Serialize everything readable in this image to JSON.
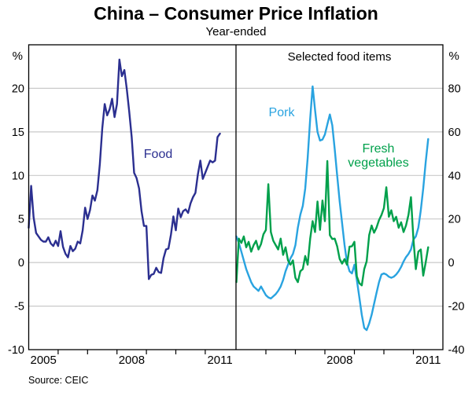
{
  "header": {
    "title": "China – Consumer Price Inflation",
    "subtitle": "Year-ended"
  },
  "footer": {
    "source": "Source: CEIC"
  },
  "colors": {
    "food": "#2B2F90",
    "pork": "#29A3E0",
    "fresh_vegetables": "#00A04B",
    "grid": "#C9C9C9",
    "frame": "#000000",
    "text": "#000000"
  },
  "chart_data": [
    {
      "type": "line",
      "panel": "left",
      "unit": "%",
      "x_monthly_start": "2005-01",
      "x_monthly_end": "2011-07",
      "x_axis_years": [
        2005,
        2012
      ],
      "x_tick_labels": [
        "2005",
        "2008",
        "2011"
      ],
      "ylim": [
        -10,
        25
      ],
      "yticks": [
        20,
        15,
        10,
        5,
        0,
        -5,
        -10
      ],
      "grid": true,
      "series": [
        {
          "name": "Food",
          "color_key": "food",
          "values": [
            4.0,
            8.8,
            5.2,
            3.4,
            3.0,
            2.6,
            2.4,
            2.4,
            2.9,
            2.2,
            1.9,
            2.5,
            1.9,
            3.6,
            1.8,
            1.0,
            0.6,
            1.9,
            1.3,
            1.6,
            2.4,
            2.2,
            3.7,
            6.3,
            5.0,
            6.0,
            7.7,
            7.1,
            8.3,
            11.3,
            15.4,
            18.2,
            16.9,
            17.6,
            18.8,
            16.7,
            18.2,
            23.3,
            21.4,
            22.1,
            19.9,
            17.3,
            14.4,
            10.3,
            9.7,
            8.5,
            5.9,
            4.2,
            4.2,
            -1.9,
            -1.4,
            -1.3,
            -0.6,
            -1.1,
            -1.2,
            0.5,
            1.5,
            1.6,
            3.2,
            5.3,
            3.7,
            6.2,
            5.2,
            5.9,
            6.1,
            5.7,
            6.8,
            7.5,
            8.0,
            10.1,
            11.7,
            9.6,
            10.3,
            11.0,
            11.7,
            11.5,
            11.7,
            14.4,
            14.8
          ]
        }
      ],
      "annotations": [
        {
          "id": "food-label",
          "text": "Food",
          "color_key": "food"
        }
      ]
    },
    {
      "type": "line",
      "panel": "right",
      "title": "Selected food items",
      "unit": "%",
      "x_monthly_start": "2005-01",
      "x_monthly_end": "2011-07",
      "x_axis_years": [
        2005,
        2012
      ],
      "x_tick_labels": [
        "2008",
        "2011"
      ],
      "ylim": [
        -40,
        100
      ],
      "yticks": [
        80,
        60,
        40,
        20,
        0,
        -20,
        -40
      ],
      "grid": true,
      "series": [
        {
          "name": "Pork",
          "color_key": "pork",
          "values": [
            12,
            9,
            5,
            1,
            -3,
            -6,
            -9,
            -11,
            -12,
            -13,
            -11,
            -13,
            -15,
            -16,
            -16.5,
            -15.5,
            -14.5,
            -13,
            -11,
            -8,
            -4,
            -1,
            2,
            4,
            8,
            16,
            22,
            26,
            34,
            48,
            66,
            80.9,
            70,
            60,
            56,
            56.5,
            58.8,
            63.4,
            68,
            63,
            52,
            40,
            28,
            18,
            8,
            0,
            -4,
            -5,
            -1,
            -8,
            -16,
            -24,
            -30,
            -31,
            -28,
            -24,
            -19,
            -14,
            -9,
            -5.5,
            -5,
            -5.5,
            -6.5,
            -7,
            -6.5,
            -5.5,
            -4,
            -2,
            0.5,
            2.5,
            4,
            6,
            10.5,
            12,
            16,
            24,
            34,
            46,
            56.7
          ]
        },
        {
          "name": "Fresh vegetables",
          "color_key": "fresh_vegetables",
          "values": [
            -9,
            11,
            9,
            12,
            7,
            9.5,
            5,
            8,
            10,
            6,
            8.5,
            13,
            15,
            36,
            14,
            10,
            8,
            6,
            11,
            3.5,
            7,
            1,
            -1,
            1,
            -7,
            -9,
            -4,
            -3,
            3,
            -1,
            11,
            19,
            14,
            28,
            15,
            28.5,
            19,
            46.6,
            12.6,
            10.8,
            11,
            7.5,
            1.6,
            -0.5,
            1.6,
            -1,
            7.3,
            7.5,
            9.5,
            -6.3,
            -9.5,
            -10.5,
            -3,
            0.6,
            12.6,
            17,
            13.7,
            16,
            19.5,
            21.8,
            25,
            34.6,
            21,
            24,
            19,
            21,
            16,
            18.5,
            14,
            17,
            22,
            30,
            11,
            -3,
            5,
            6,
            -6,
            0,
            7
          ]
        }
      ],
      "annotations": [
        {
          "id": "pork-label",
          "text": "Pork",
          "color_key": "pork"
        },
        {
          "id": "fresh-veg-label-line1",
          "text": "Fresh",
          "color_key": "fresh_vegetables"
        },
        {
          "id": "fresh-veg-label-line2",
          "text": "vegetables",
          "color_key": "fresh_vegetables"
        }
      ]
    }
  ]
}
